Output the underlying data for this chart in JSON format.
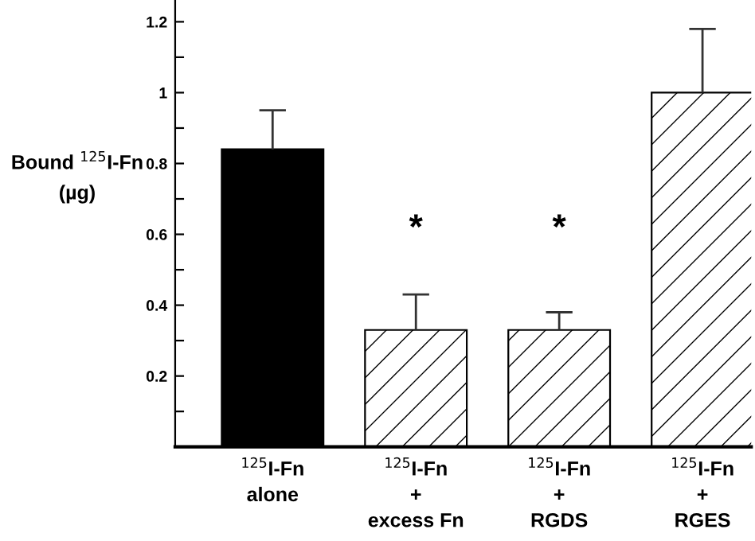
{
  "chart_data": {
    "type": "bar",
    "ylabel": "Bound $^{125}$I-Fn\n(µg)",
    "categories": [
      "$^{125}$I-Fn\nalone",
      "$^{125}$I-Fn\n+\nexcess Fn",
      "$^{125}$I-Fn\n+\nRGDS",
      "$^{125}$I-Fn\n+\nRGES"
    ],
    "values": [
      0.84,
      0.33,
      0.33,
      1.0
    ],
    "errors": [
      [
        0.84,
        0.95
      ],
      [
        0.33,
        0.43
      ],
      [
        0.33,
        0.38
      ],
      [
        1.0,
        1.18
      ]
    ],
    "colors": [
      "#000000",
      "#ffffff",
      "#ffffff",
      "#ffffff"
    ],
    "ylim": [
      0,
      1.26
    ],
    "yticks": [
      {
        "value": 0.1,
        "label": null
      },
      0.2,
      {
        "value": 0.3,
        "label": null
      },
      0.4,
      {
        "value": 0.5,
        "label": null
      },
      0.6,
      {
        "value": 0.7,
        "label": null
      },
      0.8,
      {
        "value": 0.9,
        "label": null
      },
      1,
      {
        "value": 1.1,
        "label": null
      },
      1.2
    ],
    "value_labels": [
      null,
      "*",
      "*",
      null
    ],
    "grid": false,
    "legend": false
  }
}
